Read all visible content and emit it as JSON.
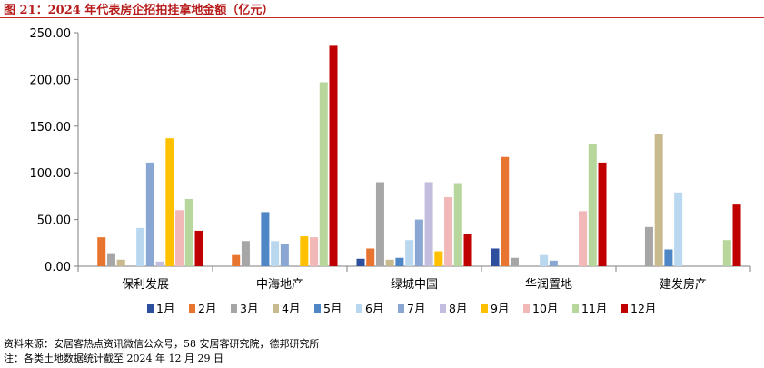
{
  "figure_title": "图 21：2024 年代表房企招拍挂拿地金额（亿元）",
  "source_text": "资料来源：安居客热点资讯微信公众号，58 安居客研究院，德邦研究所",
  "note_text": "注：各类土地数据统计截至 2024 年 12 月 29 日",
  "chart_data": {
    "type": "bar",
    "title": "",
    "xlabel": "",
    "ylabel": "",
    "ylim": [
      0,
      250
    ],
    "yticks": [
      "0.00",
      "50.00",
      "100.00",
      "150.00",
      "200.00",
      "250.00"
    ],
    "grid": false,
    "legend_position": "bottom",
    "categories": [
      "保利发展",
      "中海地产",
      "绿城中国",
      "华润置地",
      "建发房产"
    ],
    "series": [
      {
        "name": "1月",
        "color": "#2e4f9e",
        "values": [
          0,
          0,
          8,
          19,
          0
        ]
      },
      {
        "name": "2月",
        "color": "#e8752f",
        "values": [
          31,
          12,
          19,
          117,
          0
        ]
      },
      {
        "name": "3月",
        "color": "#a6a6a6",
        "values": [
          14,
          27,
          90,
          9,
          42
        ]
      },
      {
        "name": "4月",
        "color": "#c8b98f",
        "values": [
          7,
          0,
          7,
          0,
          142
        ]
      },
      {
        "name": "5月",
        "color": "#4f86c6",
        "values": [
          0,
          58,
          9,
          0,
          18
        ]
      },
      {
        "name": "6月",
        "color": "#b9d8ef",
        "values": [
          41,
          27,
          28,
          12,
          79
        ]
      },
      {
        "name": "7月",
        "color": "#8aa7d3",
        "values": [
          111,
          24,
          50,
          6,
          0
        ]
      },
      {
        "name": "8月",
        "color": "#c3bedf",
        "values": [
          5,
          0,
          90,
          0,
          0
        ]
      },
      {
        "name": "9月",
        "color": "#ffc000",
        "values": [
          137,
          32,
          16,
          0,
          0
        ]
      },
      {
        "name": "10月",
        "color": "#f2b8b8",
        "values": [
          60,
          31,
          74,
          59,
          0
        ]
      },
      {
        "name": "11月",
        "color": "#b7d69c",
        "values": [
          72,
          197,
          89,
          131,
          28
        ]
      },
      {
        "name": "12月",
        "color": "#c00000",
        "values": [
          38,
          236,
          35,
          111,
          66
        ]
      }
    ]
  }
}
